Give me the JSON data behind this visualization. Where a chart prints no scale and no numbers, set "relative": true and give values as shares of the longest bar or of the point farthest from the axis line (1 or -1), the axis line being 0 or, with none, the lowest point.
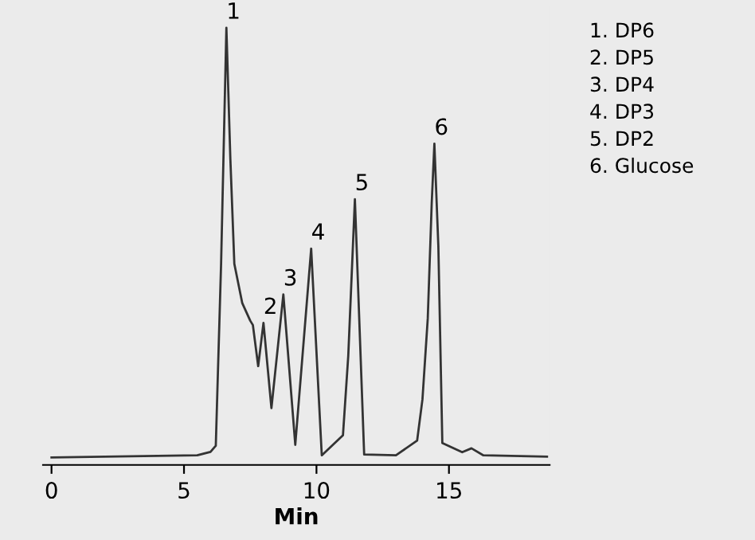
{
  "chart_data": {
    "type": "line",
    "relative": true,
    "xlabel": "Min",
    "xlim": [
      -0.32,
      18.8
    ],
    "xticks": [
      0,
      5,
      10,
      15
    ],
    "grid": false,
    "legend": false,
    "series": [
      {
        "color": "#333333",
        "x": [
          0,
          5.5,
          6.0,
          6.2,
          6.4,
          6.6,
          6.75,
          6.9,
          7.2,
          7.5,
          7.6,
          7.8,
          8.0,
          8.3,
          8.75,
          9.2,
          9.8,
          10.2,
          11.0,
          11.2,
          11.45,
          11.8,
          13.0,
          13.8,
          14.0,
          14.2,
          14.35,
          14.45,
          14.6,
          14.75,
          15.5,
          15.85,
          16.3,
          18.7
        ],
        "values": [
          0.017,
          0.022,
          0.03,
          0.044,
          0.46,
          1.0,
          0.7,
          0.46,
          0.37,
          0.33,
          0.32,
          0.226,
          0.325,
          0.13,
          0.39,
          0.046,
          0.495,
          0.022,
          0.068,
          0.25,
          0.608,
          0.024,
          0.022,
          0.056,
          0.15,
          0.335,
          0.6,
          0.735,
          0.5,
          0.05,
          0.029,
          0.038,
          0.022,
          0.019
        ]
      }
    ],
    "annotations": [
      {
        "text": "1",
        "x": 6.6,
        "y": 1.0
      },
      {
        "text": "2",
        "x": 8.0,
        "y": 0.325
      },
      {
        "text": "3",
        "x": 8.75,
        "y": 0.39
      },
      {
        "text": "4",
        "x": 9.8,
        "y": 0.495
      },
      {
        "text": "5",
        "x": 11.45,
        "y": 0.608
      },
      {
        "text": "6",
        "x": 14.45,
        "y": 0.735
      },
      "1. DP6",
      "2. DP5",
      "3. DP4",
      "4. DP3",
      "5. DP2",
      "6. Glucose"
    ]
  }
}
